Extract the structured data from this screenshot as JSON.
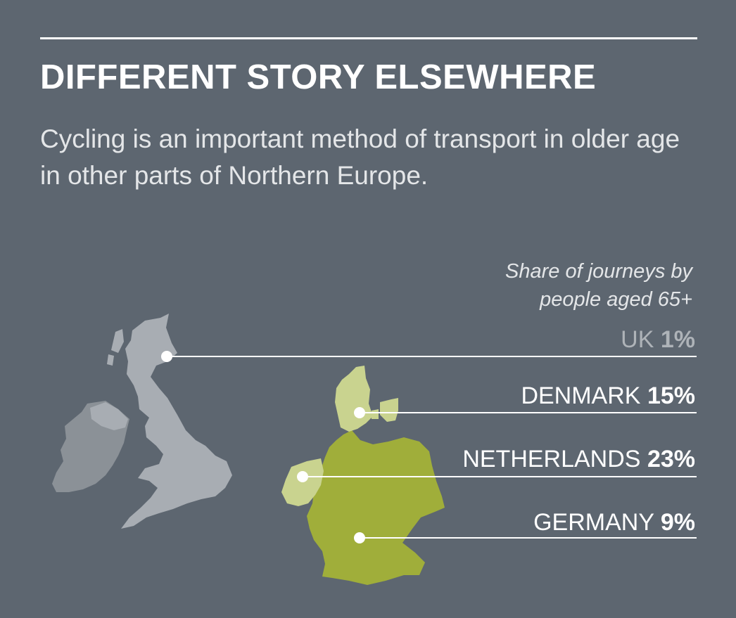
{
  "header": {
    "title": "DIFFERENT STORY ELSEWHERE",
    "subtitle": "Cycling is an important method of transport in older age in other parts of Northern Europe."
  },
  "caption": {
    "line1": "Share of journeys by",
    "line2": "people aged 65+"
  },
  "countries": [
    {
      "name": "UK",
      "value": "1%"
    },
    {
      "name": "DENMARK",
      "value": "15%"
    },
    {
      "name": "NETHERLANDS",
      "value": "23%"
    },
    {
      "name": "GERMANY",
      "value": "9%"
    }
  ],
  "colors": {
    "background": "#5d6670",
    "uk": "#a8adb3",
    "ireland": "#8b9197",
    "denmark_netherlands": "#c9d38f",
    "germany": "#a0ae3a",
    "leader_line": "#ffffff"
  }
}
